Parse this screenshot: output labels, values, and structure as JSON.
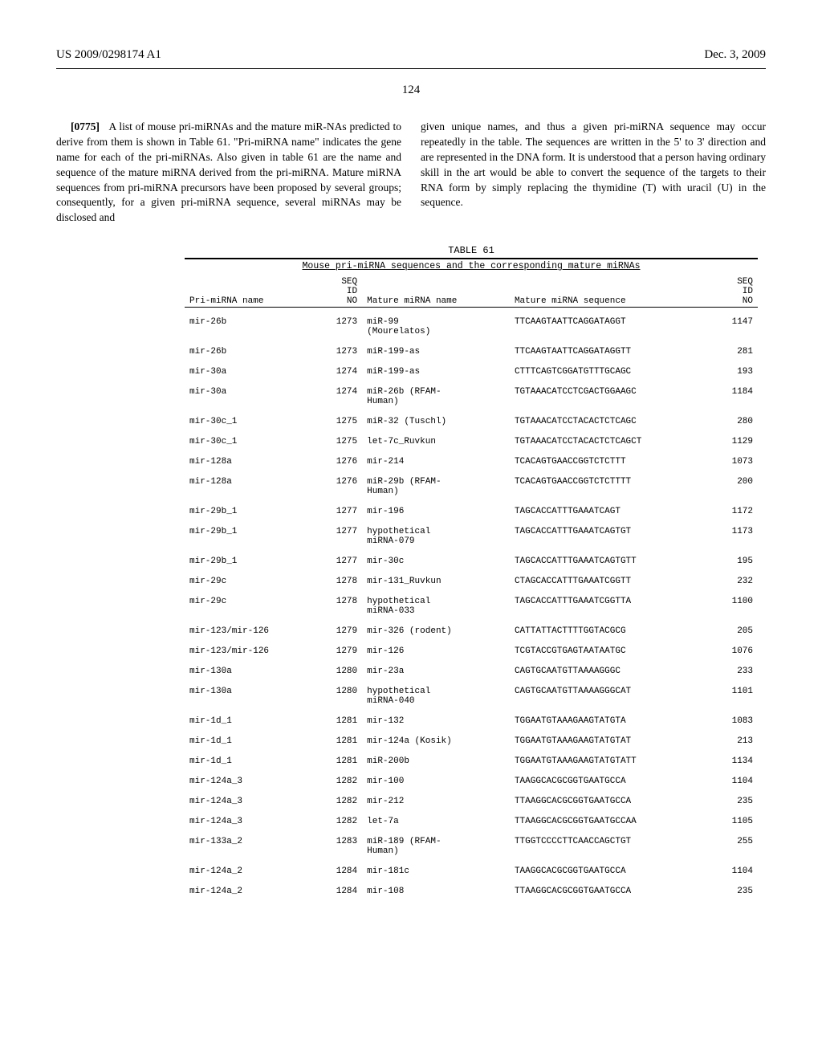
{
  "header": {
    "left": "US 2009/0298174 A1",
    "right": "Dec. 3, 2009"
  },
  "page_number": "124",
  "paragraph": {
    "num": "[0775]",
    "left_text": "A list of mouse pri-miRNAs and the mature miR-NAs predicted to derive from them is shown in Table 61. \"Pri-miRNA name\" indicates the gene name for each of the pri-miRNAs. Also given in table 61 are the name and sequence of the mature miRNA derived from the pri-miRNA. Mature miRNA sequences from pri-miRNA precursors have been proposed by several groups; consequently, for a given pri-miRNA sequence, several miRNAs may be disclosed and",
    "right_text": "given unique names, and thus a given pri-miRNA sequence may occur repeatedly in the table. The sequences are written in the 5' to 3' direction and are represented in the DNA form. It is understood that a person having ordinary skill in the art would be able to convert the sequence of the targets to their RNA form by simply replacing the thymidine (T) with uracil (U) in the sequence."
  },
  "table": {
    "label": "TABLE 61",
    "caption": "Mouse pri-miRNA sequences and the corresponding mature miRNAs",
    "headers": {
      "pri": "Pri-miRNA name",
      "seq1": "SEQ\nID\nNO",
      "mature": "Mature miRNA name",
      "matseq": "Mature miRNA sequence",
      "seq2": "SEQ\nID\nNO"
    },
    "rows": [
      {
        "pri": "mir-26b",
        "seq1": "1273",
        "mature": "miR-99\n(Mourelatos)",
        "matseq": "TTCAAGTAATTCAGGATAGGT",
        "seq2": "1147"
      },
      {
        "pri": "mir-26b",
        "seq1": "1273",
        "mature": "miR-199-as",
        "matseq": "TTCAAGTAATTCAGGATAGGTT",
        "seq2": "281"
      },
      {
        "pri": "mir-30a",
        "seq1": "1274",
        "mature": "miR-199-as",
        "matseq": "CTTTCAGTCGGATGTTTGCAGC",
        "seq2": "193"
      },
      {
        "pri": "mir-30a",
        "seq1": "1274",
        "mature": "miR-26b (RFAM-\nHuman)",
        "matseq": "TGTAAACATCCTCGACTGGAAGC",
        "seq2": "1184"
      },
      {
        "pri": "mir-30c_1",
        "seq1": "1275",
        "mature": "miR-32 (Tuschl)",
        "matseq": "TGTAAACATCCTACACTCTCAGC",
        "seq2": "280"
      },
      {
        "pri": "mir-30c_1",
        "seq1": "1275",
        "mature": "let-7c_Ruvkun",
        "matseq": "TGTAAACATCCTACACTCTCAGCT",
        "seq2": "1129"
      },
      {
        "pri": "mir-128a",
        "seq1": "1276",
        "mature": "mir-214",
        "matseq": "TCACAGTGAACCGGTCTCTTT",
        "seq2": "1073"
      },
      {
        "pri": "mir-128a",
        "seq1": "1276",
        "mature": "miR-29b (RFAM-\nHuman)",
        "matseq": "TCACAGTGAACCGGTCTCTTTT",
        "seq2": "200"
      },
      {
        "pri": "mir-29b_1",
        "seq1": "1277",
        "mature": "mir-196",
        "matseq": "TAGCACCATTTGAAATCAGT",
        "seq2": "1172"
      },
      {
        "pri": "mir-29b_1",
        "seq1": "1277",
        "mature": "hypothetical\nmiRNA-079",
        "matseq": "TAGCACCATTTGAAATCAGTGT",
        "seq2": "1173"
      },
      {
        "pri": "mir-29b_1",
        "seq1": "1277",
        "mature": "mir-30c",
        "matseq": "TAGCACCATTTGAAATCAGTGTT",
        "seq2": "195"
      },
      {
        "pri": "mir-29c",
        "seq1": "1278",
        "mature": "mir-131_Ruvkun",
        "matseq": "CTAGCACCATTTGAAATCGGTT",
        "seq2": "232"
      },
      {
        "pri": "mir-29c",
        "seq1": "1278",
        "mature": "hypothetical\nmiRNA-033",
        "matseq": "TAGCACCATTTGAAATCGGTTA",
        "seq2": "1100"
      },
      {
        "pri": "mir-123/mir-126",
        "seq1": "1279",
        "mature": "mir-326 (rodent)",
        "matseq": "CATTATTACTTTTGGTACGCG",
        "seq2": "205"
      },
      {
        "pri": "mir-123/mir-126",
        "seq1": "1279",
        "mature": "mir-126",
        "matseq": "TCGTACCGTGAGTAATAATGC",
        "seq2": "1076"
      },
      {
        "pri": "mir-130a",
        "seq1": "1280",
        "mature": "mir-23a",
        "matseq": "CAGTGCAATGTTAAAAGGGC",
        "seq2": "233"
      },
      {
        "pri": "mir-130a",
        "seq1": "1280",
        "mature": "hypothetical\nmiRNA-040",
        "matseq": "CAGTGCAATGTTAAAAGGGCAT",
        "seq2": "1101"
      },
      {
        "pri": "mir-1d_1",
        "seq1": "1281",
        "mature": "mir-132",
        "matseq": "TGGAATGTAAAGAAGTATGTA",
        "seq2": "1083"
      },
      {
        "pri": "mir-1d_1",
        "seq1": "1281",
        "mature": "mir-124a (Kosik)",
        "matseq": "TGGAATGTAAAGAAGTATGTAT",
        "seq2": "213"
      },
      {
        "pri": "mir-1d_1",
        "seq1": "1281",
        "mature": "miR-200b",
        "matseq": "TGGAATGTAAAGAAGTATGTATT",
        "seq2": "1134"
      },
      {
        "pri": "mir-124a_3",
        "seq1": "1282",
        "mature": "mir-100",
        "matseq": "TAAGGCACGCGGTGAATGCCA",
        "seq2": "1104"
      },
      {
        "pri": "mir-124a_3",
        "seq1": "1282",
        "mature": "mir-212",
        "matseq": "TTAAGGCACGCGGTGAATGCCA",
        "seq2": "235"
      },
      {
        "pri": "mir-124a_3",
        "seq1": "1282",
        "mature": "let-7a",
        "matseq": "TTAAGGCACGCGGTGAATGCCAA",
        "seq2": "1105"
      },
      {
        "pri": "mir-133a_2",
        "seq1": "1283",
        "mature": "miR-189 (RFAM-\nHuman)",
        "matseq": "TTGGTCCCCTTCAACCAGCTGT",
        "seq2": "255"
      },
      {
        "pri": "mir-124a_2",
        "seq1": "1284",
        "mature": "mir-181c",
        "matseq": "TAAGGCACGCGGTGAATGCCA",
        "seq2": "1104"
      },
      {
        "pri": "mir-124a_2",
        "seq1": "1284",
        "mature": "mir-108",
        "matseq": "TTAAGGCACGCGGTGAATGCCA",
        "seq2": "235"
      }
    ]
  }
}
